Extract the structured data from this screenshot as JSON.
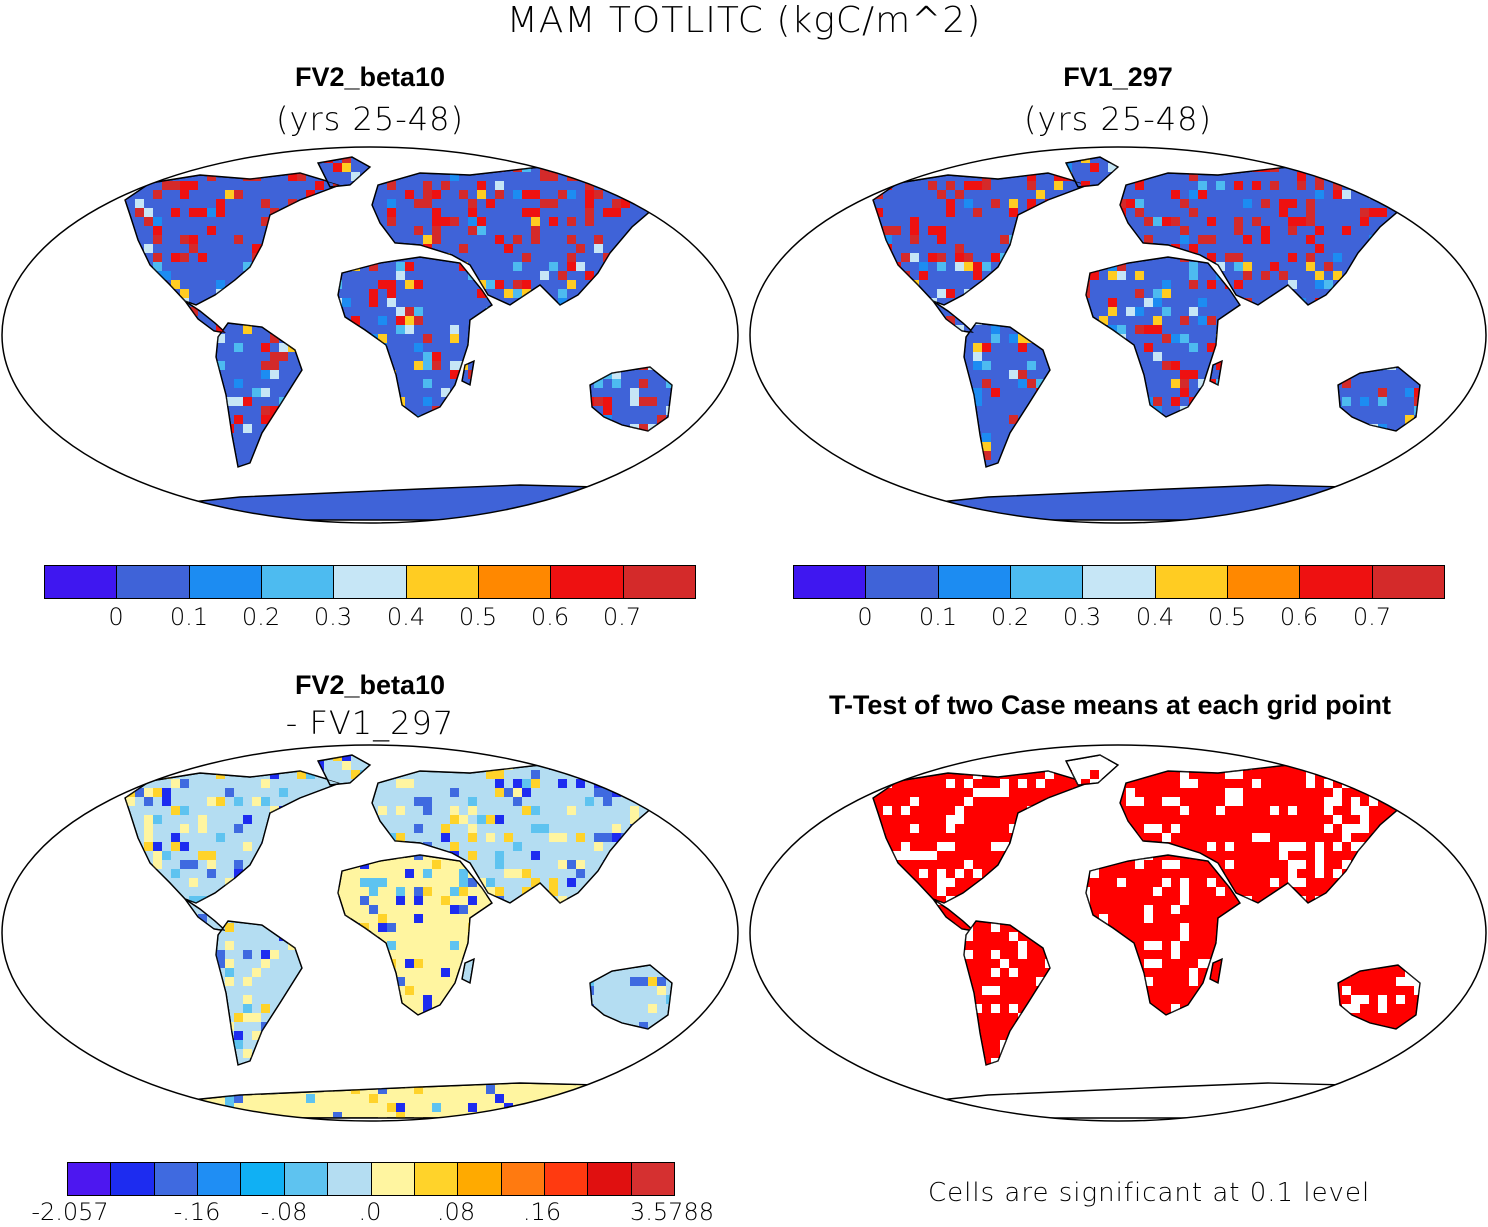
{
  "title": "MAM TOTLITC (kgC/m^2)",
  "panels": [
    {
      "title": "FV2_beta10",
      "subtitle": "(yrs 25-48)"
    },
    {
      "title": "FV1_297",
      "subtitle": "(yrs 25-48)"
    },
    {
      "title": "FV2_beta10",
      "subtitle": "- FV1_297"
    },
    {
      "title": "T-Test of two Case means at each grid point",
      "subtitle": ""
    }
  ],
  "colorbar_top": {
    "colors": [
      "#3f17f0",
      "#3f63d8",
      "#1c8cf2",
      "#4dbbf0",
      "#c6e6f6",
      "#ffcc22",
      "#ff8800",
      "#ee1111",
      "#d42a2a"
    ],
    "labels": [
      "0",
      "0.1",
      "0.2",
      "0.3",
      "0.4",
      "0.5",
      "0.6",
      "0.7"
    ]
  },
  "colorbar_diff": {
    "colors": [
      "#4d17f0",
      "#1d2cf0",
      "#3f6ae0",
      "#1f8ef4",
      "#10b0f4",
      "#5ec3f0",
      "#b4ddf2",
      "#fff5a0",
      "#ffd32a",
      "#ffaa00",
      "#ff7a10",
      "#ff3a10",
      "#e01010",
      "#d53030"
    ],
    "labels": [
      "-2.057",
      "-.16",
      "-.08",
      ".0",
      ".08",
      ".16",
      "3.5788"
    ]
  },
  "ttest_color": "#ff0000",
  "note": "Cells are significant at 0.1 level"
}
